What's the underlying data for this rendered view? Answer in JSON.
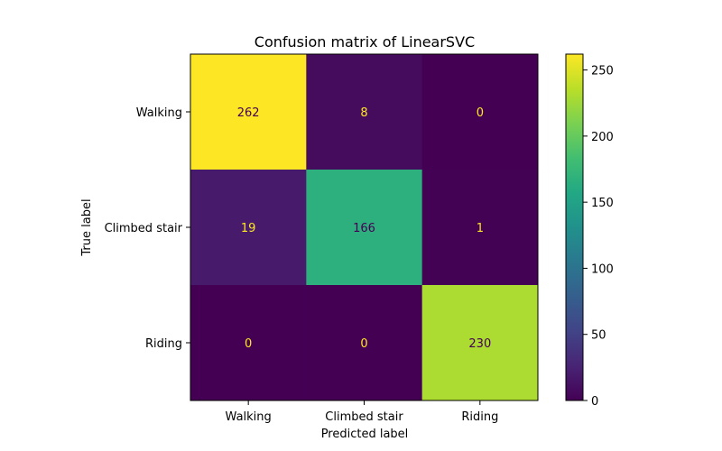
{
  "chart_data": {
    "type": "heatmap",
    "title": "Confusion matrix of LinearSVC",
    "xlabel": "Predicted label",
    "ylabel": "True label",
    "x_categories": [
      "Walking",
      "Climbed stair",
      "Riding"
    ],
    "y_categories": [
      "Walking",
      "Climbed stair",
      "Riding"
    ],
    "values": [
      [
        262,
        8,
        0
      ],
      [
        19,
        166,
        1
      ],
      [
        0,
        0,
        230
      ]
    ],
    "colorbar": {
      "min": 0,
      "max": 262,
      "ticks": [
        0,
        50,
        100,
        150,
        200,
        250
      ],
      "colormap": "viridis"
    },
    "colors": {
      "text_on_dark": "#fde725",
      "text_on_light": "#440154"
    }
  }
}
